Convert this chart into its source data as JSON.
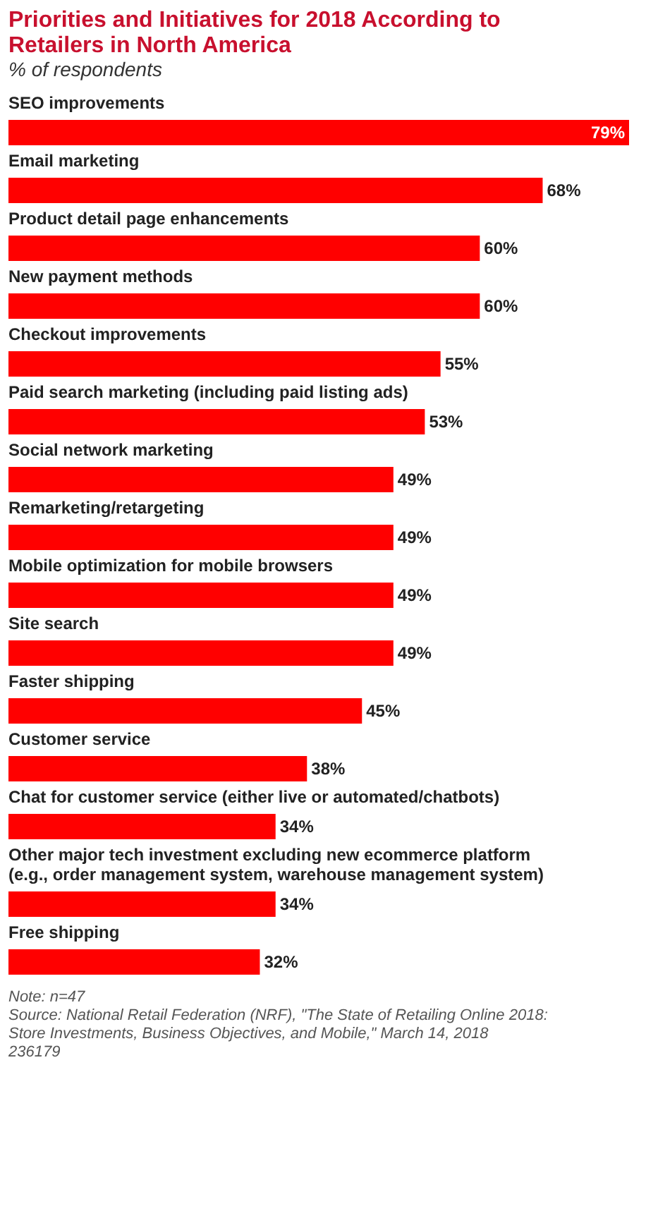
{
  "chart_data": {
    "type": "bar",
    "orientation": "horizontal",
    "title": "Priorities and Initiatives for 2018 According to Retailers in North America",
    "subtitle": "% of respondents",
    "categories": [
      "SEO improvements",
      "Email marketing",
      "Product detail page enhancements",
      "New payment methods",
      "Checkout improvements",
      "Paid search marketing (including paid listing ads)",
      "Social network marketing",
      "Remarketing/retargeting",
      "Mobile optimization for mobile browsers",
      "Site search",
      "Faster shipping",
      "Customer service",
      "Chat for customer service (either live or automated/chatbots)",
      "Other major tech investment excluding new ecommerce platform (e.g., order management system, warehouse management system)",
      "Free shipping"
    ],
    "values": [
      79,
      68,
      60,
      60,
      55,
      53,
      49,
      49,
      49,
      49,
      45,
      38,
      34,
      34,
      32
    ],
    "value_labels": [
      "79%",
      "68%",
      "60%",
      "60%",
      "55%",
      "53%",
      "49%",
      "49%",
      "49%",
      "49%",
      "45%",
      "38%",
      "34%",
      "34%",
      "32%"
    ],
    "color": "#ff0000",
    "annotations": [
      "Note: n=47",
      "Source: National Retail Federation (NRF), \"The State of Retailing Online 2018: Store Investments, Business Objectives, and Mobile,\" March 14, 2018",
      "236179"
    ]
  }
}
